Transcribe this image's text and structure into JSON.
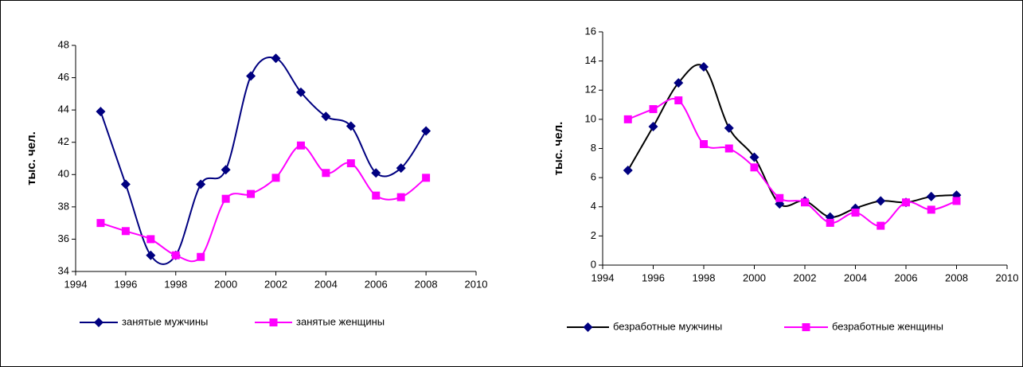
{
  "chart_data": [
    {
      "type": "line",
      "y_label": "тыс. чел.",
      "x": [
        1995,
        1996,
        1997,
        1998,
        1999,
        2000,
        2001,
        2002,
        2003,
        2004,
        2005,
        2006,
        2007,
        2008
      ],
      "xlim": [
        1994,
        2010
      ],
      "xticks": [
        1994,
        1996,
        1998,
        2000,
        2002,
        2004,
        2006,
        2008,
        2010
      ],
      "ylim": [
        34,
        48
      ],
      "yticks": [
        34,
        36,
        38,
        40,
        42,
        44,
        46,
        48
      ],
      "series": [
        {
          "name": "занятые мужчины",
          "color": "#000080",
          "line_color": "#000080",
          "marker": "diamond",
          "values": [
            43.9,
            39.4,
            35.0,
            35.0,
            39.4,
            40.3,
            46.1,
            47.2,
            45.1,
            43.6,
            43.0,
            40.1,
            40.4,
            42.7
          ]
        },
        {
          "name": "занятые женщины",
          "color": "#ff00ff",
          "line_color": "#ff00ff",
          "marker": "square",
          "values": [
            37.0,
            36.5,
            36.0,
            35.0,
            34.9,
            38.5,
            38.8,
            39.8,
            41.8,
            40.1,
            40.7,
            38.7,
            38.6,
            39.8
          ]
        }
      ]
    },
    {
      "type": "line",
      "y_label": "тыс. чел.",
      "x": [
        1995,
        1996,
        1997,
        1998,
        1999,
        2000,
        2001,
        2002,
        2003,
        2004,
        2005,
        2006,
        2007,
        2008
      ],
      "xlim": [
        1994,
        2010
      ],
      "xticks": [
        1994,
        1996,
        1998,
        2000,
        2002,
        2004,
        2006,
        2008,
        2010
      ],
      "ylim": [
        0,
        16
      ],
      "yticks": [
        0,
        2,
        4,
        6,
        8,
        10,
        12,
        14,
        16
      ],
      "series": [
        {
          "name": "безработные мужчины",
          "color": "#000080",
          "line_color": "#000000",
          "marker": "diamond",
          "values": [
            6.5,
            9.5,
            12.5,
            13.6,
            9.4,
            7.4,
            4.2,
            4.4,
            3.3,
            3.9,
            4.4,
            4.3,
            4.7,
            4.8
          ]
        },
        {
          "name": "безработные женщины",
          "color": "#ff00ff",
          "line_color": "#ff00ff",
          "marker": "square",
          "values": [
            10.0,
            10.7,
            11.3,
            8.3,
            8.0,
            6.7,
            4.6,
            4.3,
            2.9,
            3.6,
            2.7,
            4.3,
            3.8,
            4.4
          ]
        }
      ]
    }
  ]
}
